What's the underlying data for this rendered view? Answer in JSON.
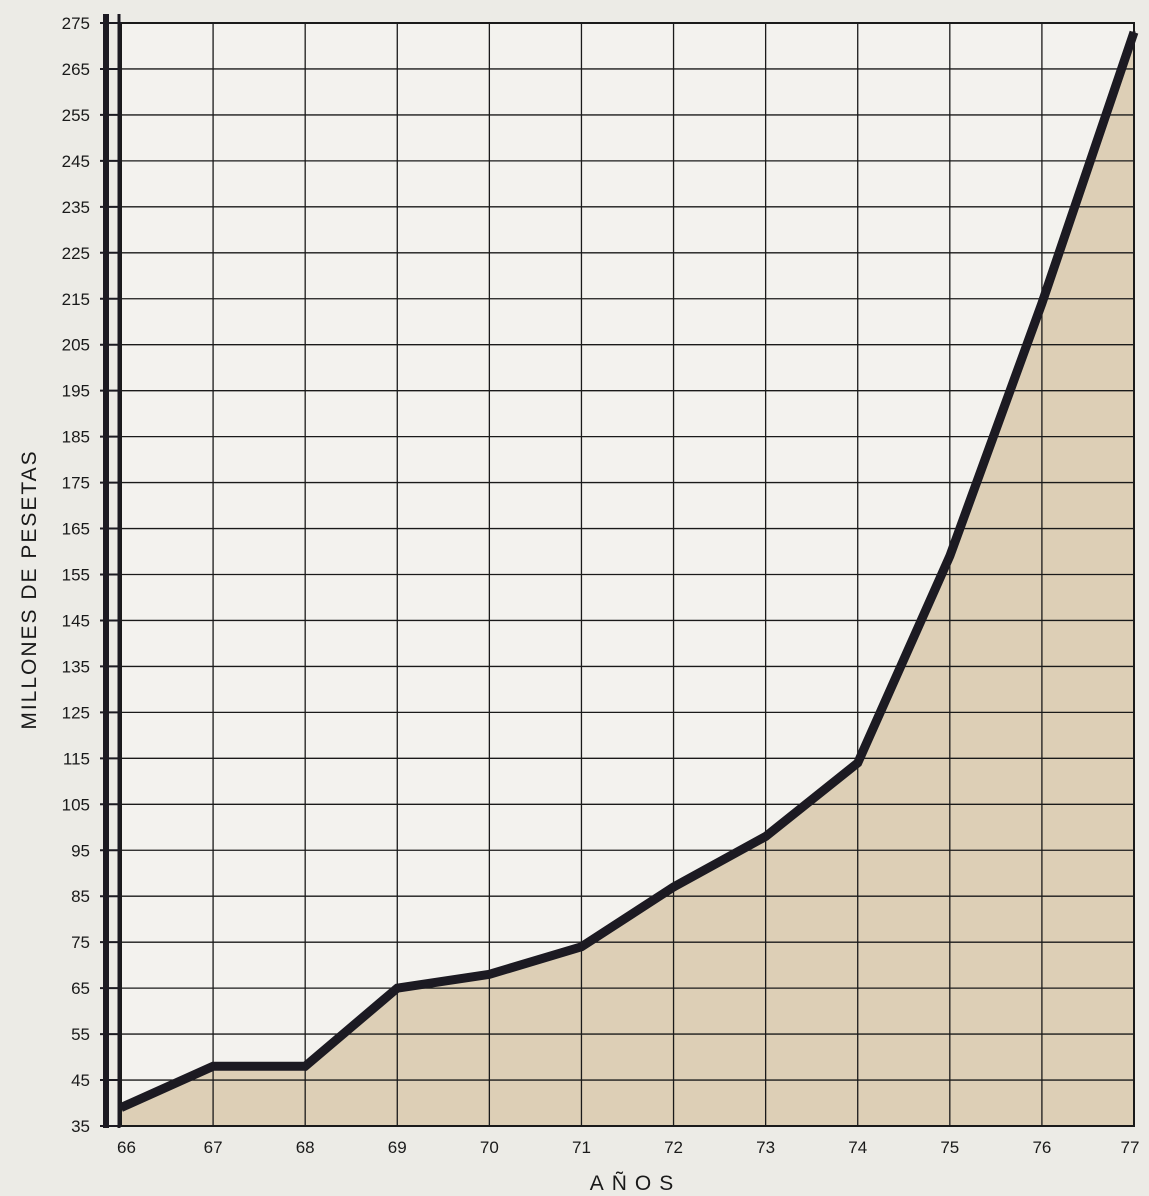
{
  "chart_data": {
    "type": "area",
    "xlabel": "AÑOS",
    "ylabel": "MILLONES DE PESETAS",
    "x": [
      "66",
      "67",
      "68",
      "69",
      "70",
      "71",
      "72",
      "73",
      "74",
      "75",
      "76",
      "77"
    ],
    "series": [
      {
        "values": [
          39,
          48,
          48,
          65,
          68,
          74,
          87,
          98,
          114,
          159,
          214,
          273
        ]
      }
    ],
    "yticks": [
      35,
      45,
      55,
      65,
      75,
      85,
      95,
      105,
      115,
      125,
      135,
      145,
      155,
      165,
      175,
      185,
      195,
      205,
      215,
      225,
      235,
      245,
      255,
      265,
      275
    ],
    "ylim": [
      35,
      275
    ],
    "xlim": [
      "66",
      "77"
    ],
    "grid": true,
    "colors": {
      "fill": "#ddcfb6",
      "line": "#1c1a22",
      "grid": "#1a1a1a",
      "background": "#ecebe6",
      "plot_background": "#f3f2ee"
    }
  }
}
